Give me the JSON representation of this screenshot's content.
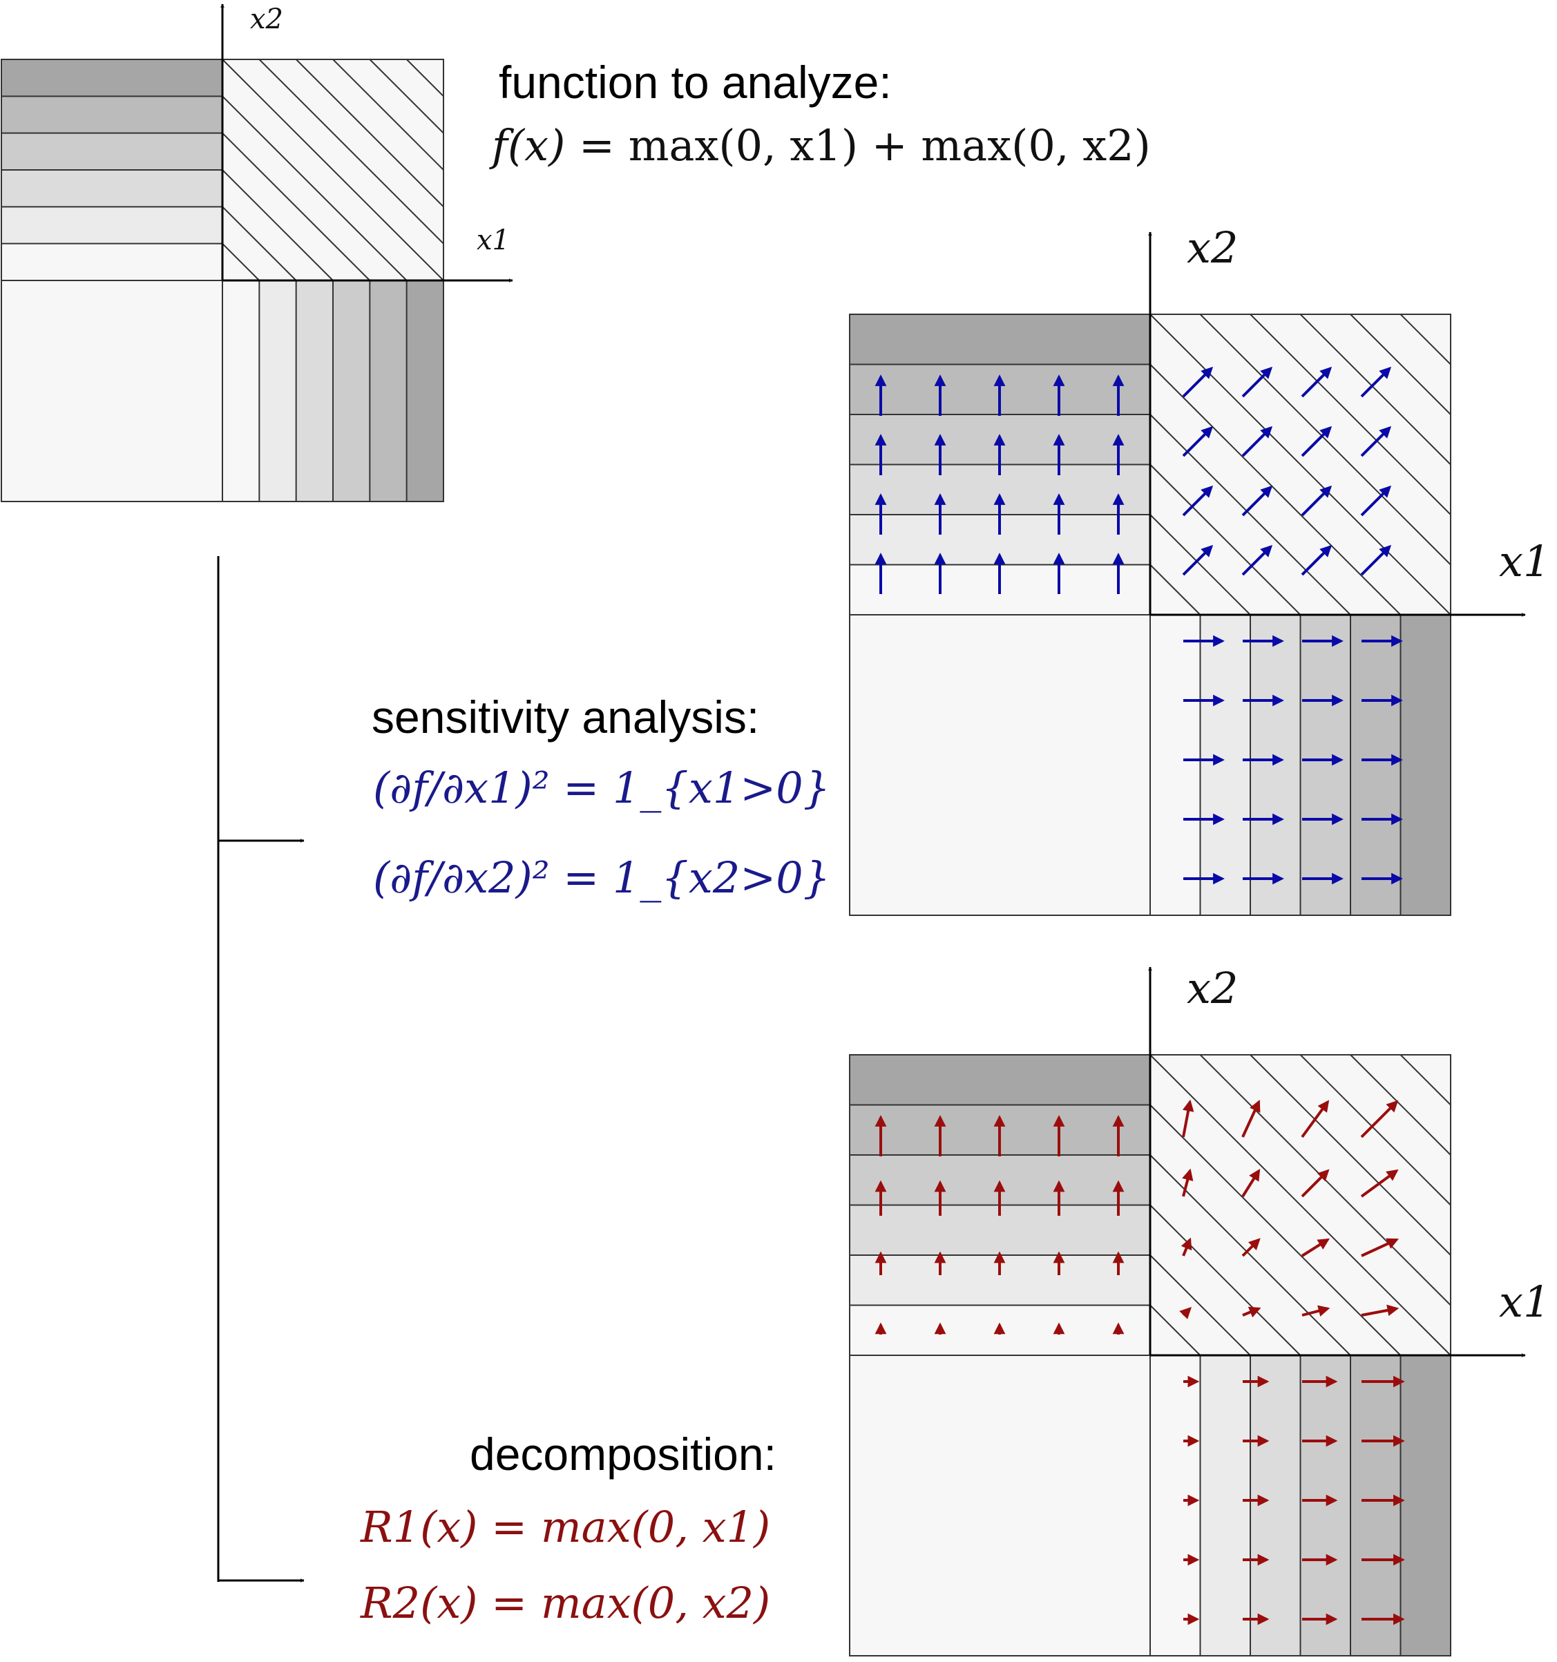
{
  "axes": {
    "x1": "x1",
    "x2": "x2"
  },
  "top_panel": {
    "heading": "function to analyze:",
    "formula": {
      "lhs": "f(x)",
      "rhs": "max(0, x1) + max(0, x2)"
    }
  },
  "sensitivity_panel": {
    "heading": "sensitivity analysis:",
    "formulas": [
      "(∂f/∂x1)² = 1_{x1>0}",
      "(∂f/∂x2)² = 1_{x2>0}"
    ],
    "arrow_color": "#0a0aa8"
  },
  "decomposition_panel": {
    "heading": "decomposition:",
    "formulas": [
      "R1(x) = max(0, x1)",
      "R2(x) = max(0, x2)"
    ],
    "arrow_color": "#9b0d0d"
  },
  "function_shading": {
    "levels": 6,
    "quadrant_colors": [
      "#f7f7f7",
      "#ebebeb",
      "#dcdcdc",
      "#cccccc",
      "#bbbbbb",
      "#a6a6a6",
      "#919191",
      "#7a7a7a",
      "#646464",
      "#4b4b4b",
      "#2f2f2f",
      "#0c0c0c"
    ]
  }
}
